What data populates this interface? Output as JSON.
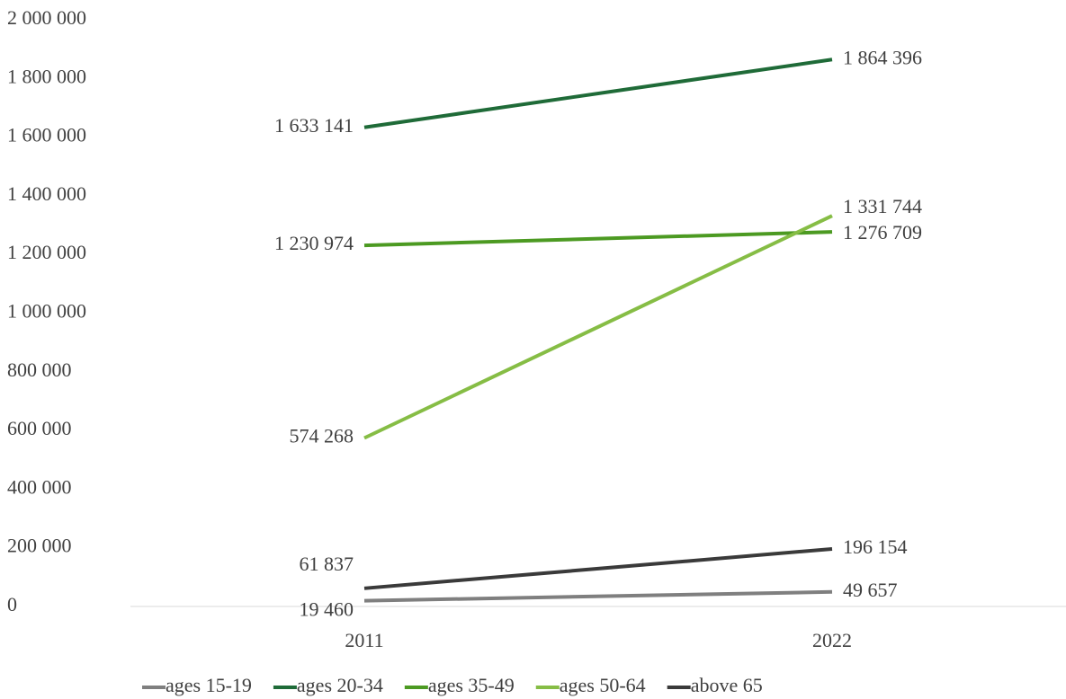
{
  "chart_data": {
    "type": "line",
    "categories": [
      "2011",
      "2022"
    ],
    "series": [
      {
        "name": "ages 15-19",
        "color": "#7f7f7f",
        "values": [
          19460,
          49657
        ],
        "value_labels": [
          "19 460",
          "49 657"
        ]
      },
      {
        "name": "ages 20-34",
        "color": "#1f6b38",
        "values": [
          1633141,
          1864396
        ],
        "value_labels": [
          "1 633 141",
          "1 864 396"
        ]
      },
      {
        "name": "ages 35-49",
        "color": "#4c9a22",
        "values": [
          1230974,
          1276709
        ],
        "value_labels": [
          "1 230 974",
          "1 276 709"
        ]
      },
      {
        "name": "ages 50-64",
        "color": "#86bd45",
        "values": [
          574268,
          1331744
        ],
        "value_labels": [
          "574 268",
          "1 331 744"
        ]
      },
      {
        "name": "above 65",
        "color": "#3a3a3a",
        "values": [
          61837,
          196154
        ],
        "value_labels": [
          "61 837",
          "196 154"
        ]
      }
    ],
    "ylim": [
      0,
      2000000
    ],
    "yticks": [
      0,
      {
        "value": 200000,
        "label": "200 000"
      },
      {
        "value": 400000,
        "label": "400 000"
      },
      {
        "value": 600000,
        "label": "600 000"
      },
      {
        "value": 800000,
        "label": "800 000"
      },
      {
        "value": 1000000,
        "label": "1 000 000"
      },
      {
        "value": 1200000,
        "label": "1 200 000"
      },
      {
        "value": 1400000,
        "label": "1 400 000"
      },
      {
        "value": 1600000,
        "label": "1 600 000"
      },
      {
        "value": 1800000,
        "label": "1 800 000"
      },
      {
        "value": 2000000,
        "label": "2 000 000"
      }
    ],
    "grid": false,
    "legend": "bottom"
  }
}
